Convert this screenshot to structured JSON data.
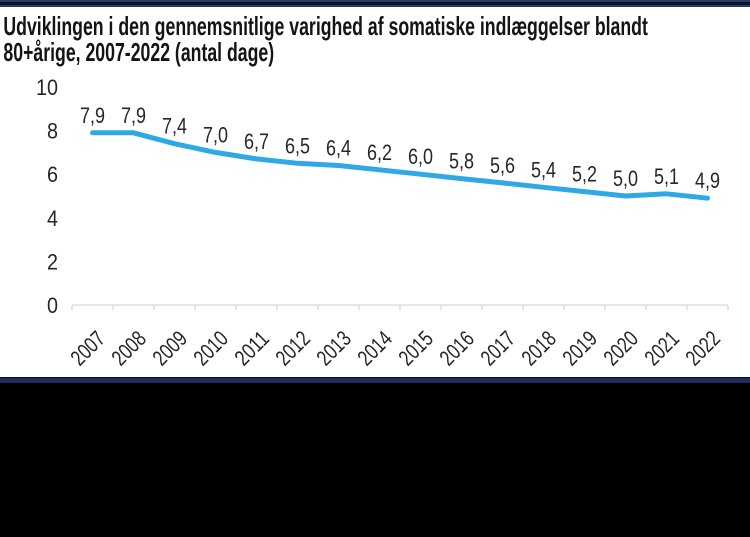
{
  "title": {
    "line1": "Udviklingen i den gennemsnitlige varighed af somatiske indlæggelser blandt",
    "line2": "80+årige, 2007-2022 (antal dage)"
  },
  "chart_data": {
    "type": "line",
    "title": "Udviklingen i den gennemsnitlige varighed af somatiske indlæggelser blandt 80+årige, 2007-2022 (antal dage)",
    "categories": [
      "2007",
      "2008",
      "2009",
      "2010",
      "2011",
      "2012",
      "2013",
      "2014",
      "2015",
      "2016",
      "2017",
      "2018",
      "2019",
      "2020",
      "2021",
      "2022"
    ],
    "values": [
      7.9,
      7.9,
      7.4,
      7.0,
      6.7,
      6.5,
      6.4,
      6.2,
      6.0,
      5.8,
      5.6,
      5.4,
      5.2,
      5.0,
      5.1,
      4.9
    ],
    "data_labels": [
      "7,9",
      "7,9",
      "7,4",
      "7,0",
      "6,7",
      "6,5",
      "6,4",
      "6,2",
      "6,0",
      "5,8",
      "5,6",
      "5,4",
      "5,2",
      "5,0",
      "5,1",
      "4,9"
    ],
    "xlabel": "",
    "ylabel": "",
    "ylim": [
      0,
      10
    ],
    "yticks": [
      0,
      2,
      4,
      6,
      8,
      10
    ],
    "grid": "off",
    "legend": "none",
    "line_color": "#2EA9E4",
    "axis_color": "#D9D9D9",
    "label_color": "#262626"
  },
  "colors": {
    "background": "#FFFFFF",
    "border_navy": "#2A3968",
    "border_dark": "#0B102B",
    "footer_navy": "#202C59",
    "footer_black": "#000000"
  }
}
